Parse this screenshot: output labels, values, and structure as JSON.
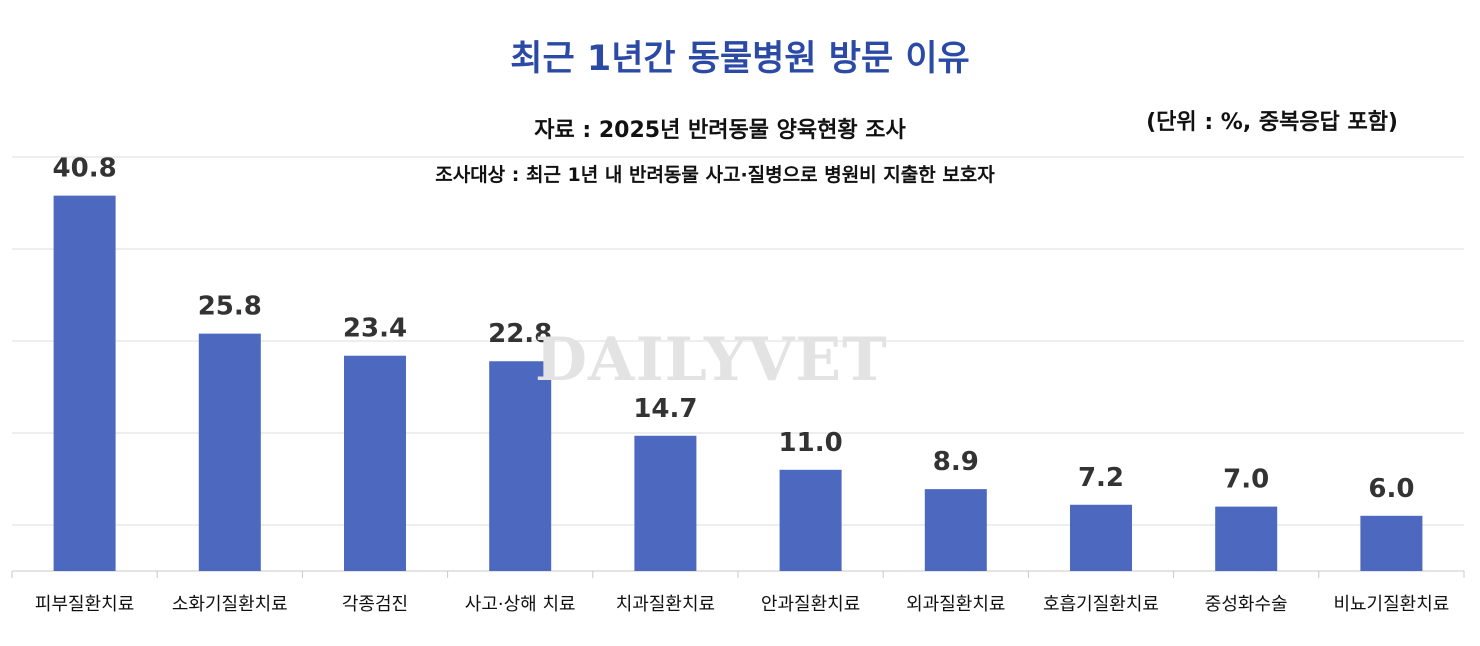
{
  "header": {
    "title": "최근 1년간 동물병원 방문 이유",
    "source": "자료 : 2025년 반려동물 양육현황 조사",
    "unit": "(단위 : %, 중복응답 포함)",
    "subject": "조사대상 : 최근 1년 내 반려동물 사고·질병으로 병원비 지출한 보호자"
  },
  "watermark": "DAILYVET",
  "colors": {
    "bar": "#4d68bf",
    "title": "#2a4aa6"
  },
  "chart_data": {
    "type": "bar",
    "title": "최근 1년간 동물병원 방문 이유",
    "categories": [
      "피부질환치료",
      "소화기질환치료",
      "각종검진",
      "사고·상해 치료",
      "치과질환치료",
      "안과질환치료",
      "외과질환치료",
      "호흡기질환치료",
      "중성화수술",
      "비뇨기질환치료"
    ],
    "values": [
      40.8,
      25.8,
      23.4,
      22.8,
      14.7,
      11.0,
      8.9,
      7.2,
      7.0,
      6.0
    ],
    "value_labels": [
      "40.8",
      "25.8",
      "23.4",
      "22.8",
      "14.7",
      "11.0",
      "8.9",
      "7.2",
      "7.0",
      "6.0"
    ],
    "ylim": [
      0,
      50
    ],
    "grid": true,
    "legend": "none"
  }
}
